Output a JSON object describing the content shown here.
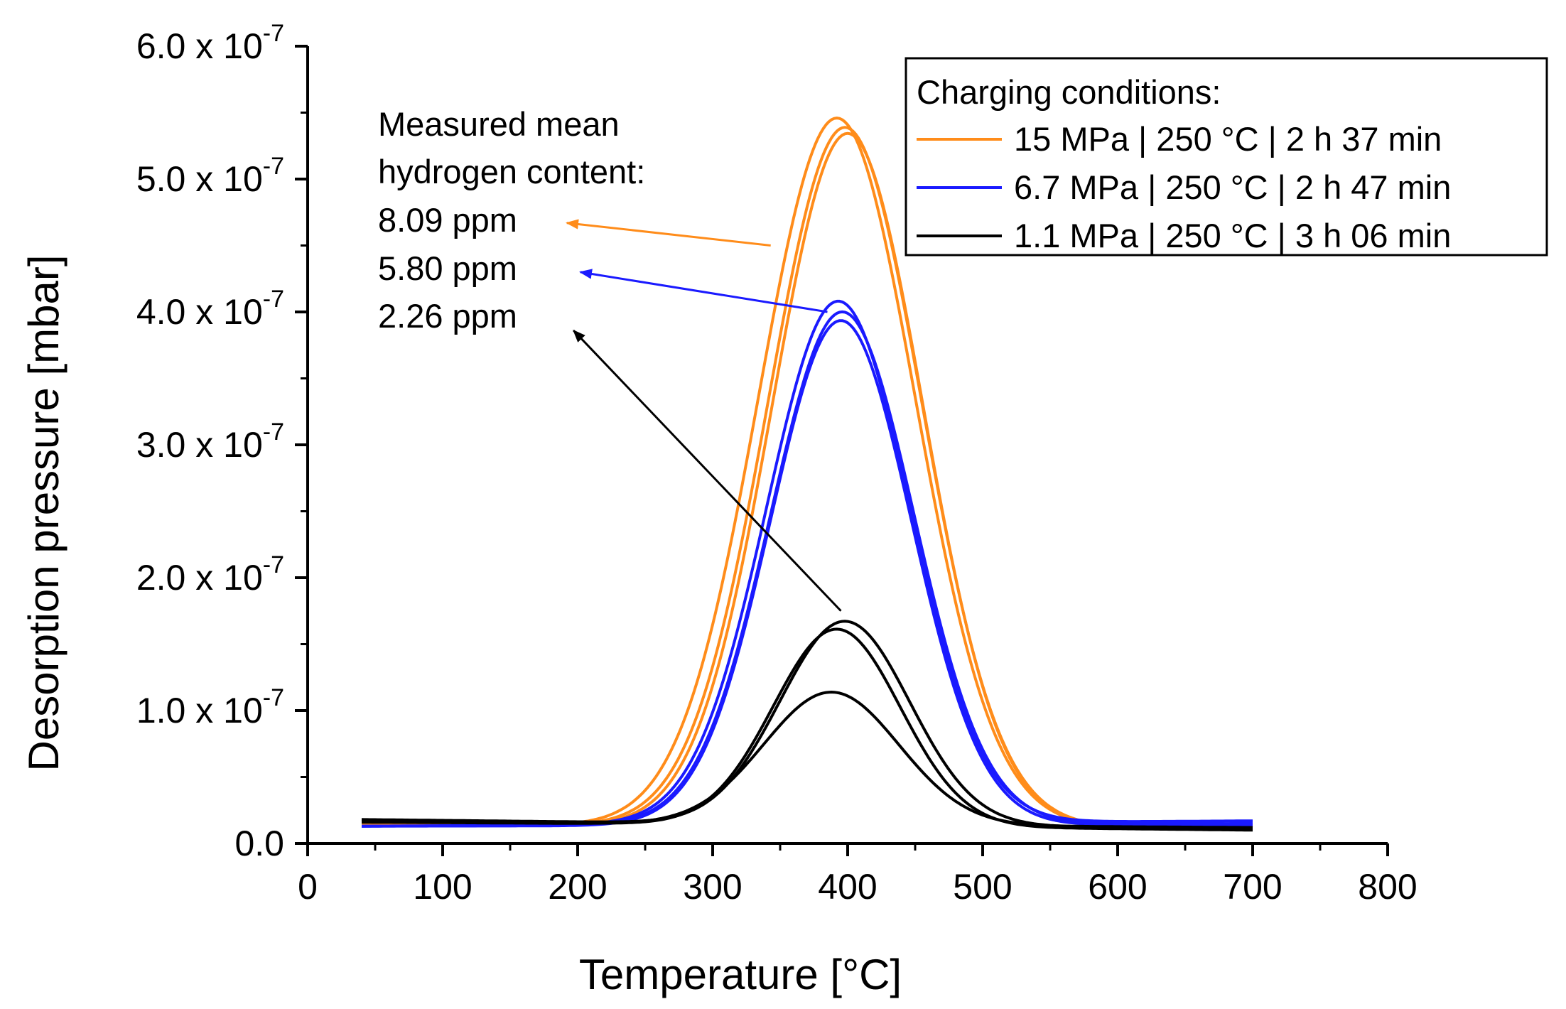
{
  "chart_data": {
    "type": "line",
    "title": "",
    "xlabel": "Temperature [°C]",
    "ylabel": "Desorption pressure [mbar]",
    "xlim": [
      0,
      800
    ],
    "ylim": [
      0,
      6e-07
    ],
    "grid": false,
    "x_ticks": [
      0,
      100,
      200,
      300,
      400,
      500,
      600,
      700,
      800
    ],
    "x_tick_labels": [
      "0",
      "100",
      "200",
      "300",
      "400",
      "500",
      "600",
      "700",
      "800"
    ],
    "y_ticks": [
      0,
      1e-07,
      2e-07,
      3e-07,
      4e-07,
      5e-07,
      6e-07
    ],
    "y_tick_labels": [
      {
        "mantissa": "0.0",
        "exponent": ""
      },
      {
        "mantissa": "1.0 x 10",
        "exponent": "-7"
      },
      {
        "mantissa": "2.0 x 10",
        "exponent": "-7"
      },
      {
        "mantissa": "3.0 x 10",
        "exponent": "-7"
      },
      {
        "mantissa": "4.0 x 10",
        "exponent": "-7"
      },
      {
        "mantissa": "5.0 x 10",
        "exponent": "-7"
      },
      {
        "mantissa": "6.0 x 10",
        "exponent": "-7"
      }
    ],
    "legend": {
      "position": "top-right",
      "title": "Charging conditions:",
      "entries": [
        {
          "label": "15  MPa  | 250 °C | 2 h 37 min",
          "color": "#ff8c1a"
        },
        {
          "label": "6.7 MPa  | 250 °C | 2 h 47 min",
          "color": "#1a1aff"
        },
        {
          "label": "1.1 MPa  | 250 °C | 3 h 06 min",
          "color": "#000000"
        }
      ]
    },
    "series": [
      {
        "name": "15 MPa run 1",
        "group": 0,
        "color": "#ff8c1a",
        "x_start": 40,
        "x_end": 700,
        "peak": 5.33e-07,
        "center": 392,
        "width": 58,
        "base_start": 1.4e-08,
        "base_end": 1.2e-08
      },
      {
        "name": "15 MPa run 2",
        "group": 0,
        "color": "#ff8c1a",
        "x_start": 40,
        "x_end": 700,
        "peak": 5.26e-07,
        "center": 398,
        "width": 57,
        "base_start": 1.4e-08,
        "base_end": 1.2e-08
      },
      {
        "name": "15 MPa run 3",
        "group": 0,
        "color": "#ff8c1a",
        "x_start": 40,
        "x_end": 700,
        "peak": 5.22e-07,
        "center": 400,
        "width": 56,
        "base_start": 1.4e-08,
        "base_end": 1.1e-08
      },
      {
        "name": "6.7 MPa run 1",
        "group": 1,
        "color": "#1a1aff",
        "x_start": 40,
        "x_end": 700,
        "peak": 3.93e-07,
        "center": 393,
        "width": 53,
        "base_start": 1.3e-08,
        "base_end": 1.7e-08
      },
      {
        "name": "6.7 MPa run 2",
        "group": 1,
        "color": "#1a1aff",
        "x_start": 40,
        "x_end": 700,
        "peak": 3.86e-07,
        "center": 396,
        "width": 53,
        "base_start": 1.3e-08,
        "base_end": 1.5e-08
      },
      {
        "name": "6.7 MPa run 3",
        "group": 1,
        "color": "#1a1aff",
        "x_start": 40,
        "x_end": 700,
        "peak": 3.8e-07,
        "center": 395,
        "width": 52,
        "base_start": 1.3e-08,
        "base_end": 1.4e-08
      },
      {
        "name": "1.1 MPa run 1",
        "group": 2,
        "color": "#000000",
        "x_start": 40,
        "x_end": 700,
        "peak": 1.53e-07,
        "center": 398,
        "width": 48,
        "base_start": 1.8e-08,
        "base_end": 1.1e-08
      },
      {
        "name": "1.1 MPa run 2",
        "group": 2,
        "color": "#000000",
        "x_start": 40,
        "x_end": 700,
        "peak": 1.48e-07,
        "center": 392,
        "width": 47,
        "base_start": 1.7e-08,
        "base_end": 1e-08
      },
      {
        "name": "1.1 MPa run 3",
        "group": 2,
        "color": "#000000",
        "x_start": 40,
        "x_end": 700,
        "peak": 1e-07,
        "center": 388,
        "width": 50,
        "base_start": 1.6e-08,
        "base_end": 1.2e-08
      }
    ],
    "annotations": {
      "heading_line1": "Measured mean",
      "heading_line2": "hydrogen content:",
      "values": [
        {
          "text": "8.09 ppm",
          "color": "#ff8c1a",
          "from": [
            343,
            4.5e-07
          ],
          "to": [
            192,
            4.67e-07
          ]
        },
        {
          "text": "5.80 ppm",
          "color": "#1a1aff",
          "from": [
            385,
            4e-07
          ],
          "to": [
            202,
            4.3e-07
          ]
        },
        {
          "text": "2.26 ppm",
          "color": "#000000",
          "from": [
            395,
            1.75e-07
          ],
          "to": [
            197,
            3.86e-07
          ]
        }
      ]
    }
  }
}
